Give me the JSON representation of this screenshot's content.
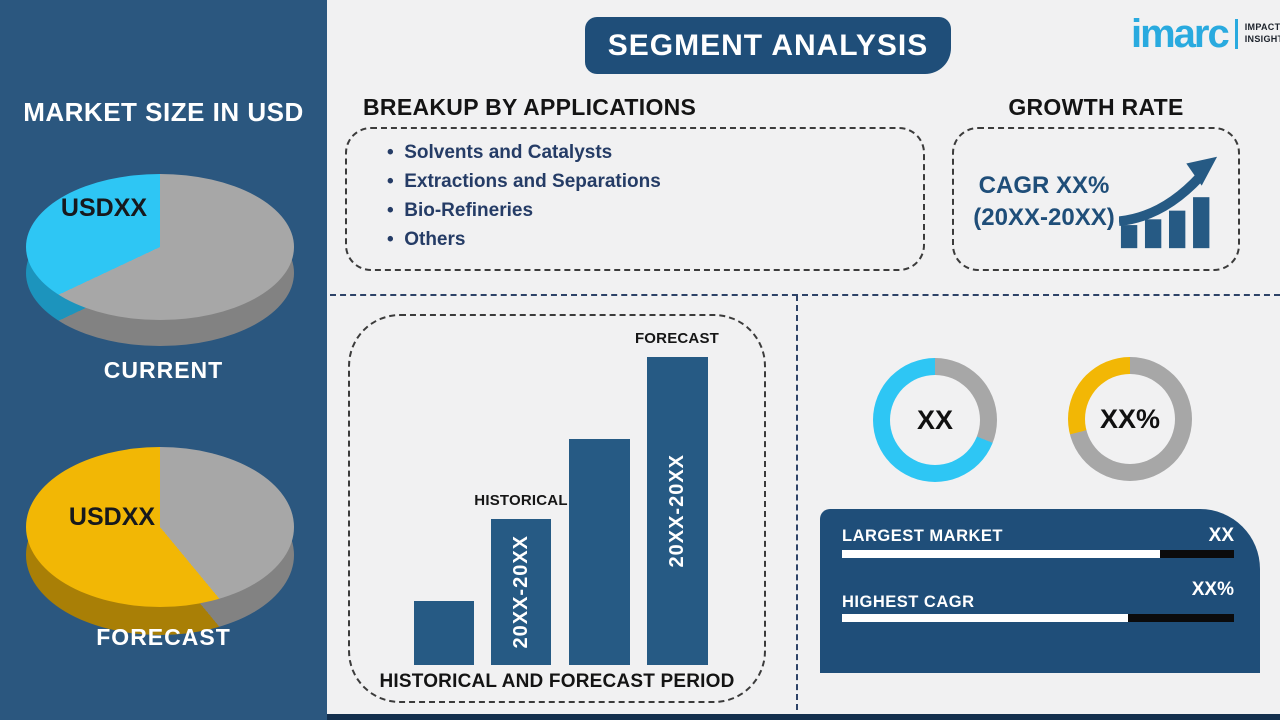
{
  "header": {
    "title": "SEGMENT ANALYSIS"
  },
  "logo": {
    "brand": "imarc",
    "tagline_line1": "IMPACTFUL",
    "tagline_line2": "INSIGHTS"
  },
  "sidebar": {
    "title": "MARKET SIZE IN USD"
  },
  "applications": {
    "heading": "BREAKUP BY APPLICATIONS",
    "items": [
      "Solvents and Catalysts",
      "Extractions and Separations",
      "Bio-Refineries",
      "Others"
    ]
  },
  "growth": {
    "heading": "GROWTH RATE",
    "cagr_line": "CAGR XX%",
    "period_line": "(20XX-20XX)"
  },
  "colors": {
    "bg": "#F1F1F2",
    "sidebar_blue": "#2B577F",
    "dark_blue": "#1F4E79",
    "bar_blue": "#265A84",
    "navy_text": "#253C66",
    "cyan": "#2EC6F4",
    "cyan_dark": "#1C94BD",
    "yellow": "#F2B705",
    "yellow_dark": "#A97F06",
    "gray": "#A7A7A7",
    "gray_dark": "#828282",
    "logo_cyan": "#29AADF",
    "strip_navy": "#132F4D",
    "black_track": "#0B0B0C"
  },
  "chart_data": [
    {
      "id": "pie-current",
      "type": "pie",
      "style": "3d",
      "title": "CURRENT",
      "slices": [
        {
          "label": "",
          "color_key": "gray",
          "pct": 68
        },
        {
          "label": "USDXX",
          "color_key": "cyan",
          "pct": 32
        }
      ]
    },
    {
      "id": "pie-forecast",
      "type": "pie",
      "style": "3d",
      "title": "FORECAST",
      "slices": [
        {
          "label": "",
          "color_key": "gray",
          "pct": 39
        },
        {
          "label": "USDXX",
          "color_key": "yellow",
          "pct": 61
        }
      ]
    },
    {
      "id": "period-bars",
      "type": "bar",
      "title": "HISTORICAL AND FORECAST PERIOD",
      "categories": [
        "",
        "20XX-20XX",
        "",
        "20XX-20XX"
      ],
      "values_rel": [
        64,
        146,
        226,
        308
      ],
      "ylim": [
        0,
        308
      ],
      "bar2_label": "HISTORICAL",
      "bar4_label": "FORECAST",
      "bar2_text": "20XX-20XX",
      "bar4_text": "20XX-20XX"
    },
    {
      "id": "donut-largest",
      "type": "donut",
      "center_label": "XX",
      "slices": [
        {
          "color_key": "gray",
          "pct": 31
        },
        {
          "color_key": "cyan",
          "pct": 69
        }
      ]
    },
    {
      "id": "donut-cagr",
      "type": "donut",
      "center_label": "XX%",
      "slices": [
        {
          "color_key": "gray",
          "pct": 71
        },
        {
          "color_key": "yellow",
          "pct": 29
        }
      ]
    },
    {
      "id": "fill-largest",
      "type": "progress",
      "label": "LARGEST MARKET",
      "value": "XX",
      "fill_pct": 81
    },
    {
      "id": "fill-cagr",
      "type": "progress",
      "label": "HIGHEST CAGR",
      "value": "XX%",
      "fill_pct": 73
    }
  ]
}
